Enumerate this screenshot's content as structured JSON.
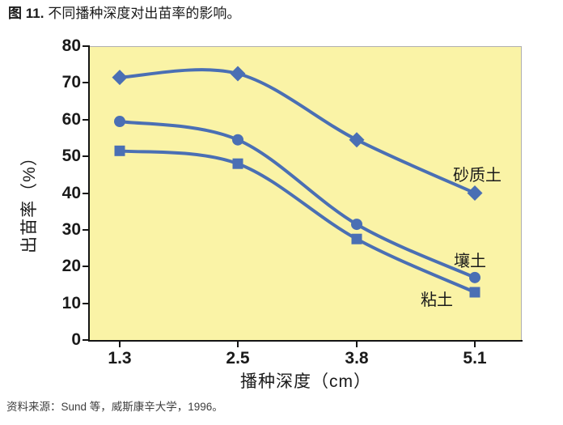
{
  "title": {
    "prefix": "图 11.",
    "text": "不同播种深度对出苗率的影响。"
  },
  "source": "资料来源：Sund 等，威斯康辛大学，1996。",
  "chart_data": {
    "type": "line",
    "categories": [
      "1.3",
      "2.5",
      "3.8",
      "5.1"
    ],
    "xlabel": "播种深度（cm）",
    "ylabel": "出苗率（%）",
    "ylim": [
      0,
      80
    ],
    "ytick_step": 10,
    "grid": false,
    "legend_position": "inline-right",
    "series": [
      {
        "name": "砂质土",
        "marker": "diamond",
        "values": [
          71.5,
          72.5,
          54.5,
          40
        ]
      },
      {
        "name": "壤土",
        "marker": "circle",
        "values": [
          59.5,
          54.5,
          31.5,
          17
        ]
      },
      {
        "name": "粘土",
        "marker": "square",
        "values": [
          51.5,
          48,
          27.5,
          13
        ]
      }
    ],
    "colors": {
      "line": "#4a6fb4",
      "plot_bg": "#faf3a6",
      "plot_border": "#b0b0b0",
      "axis": "#141414",
      "text": "#1a1a1a"
    }
  }
}
